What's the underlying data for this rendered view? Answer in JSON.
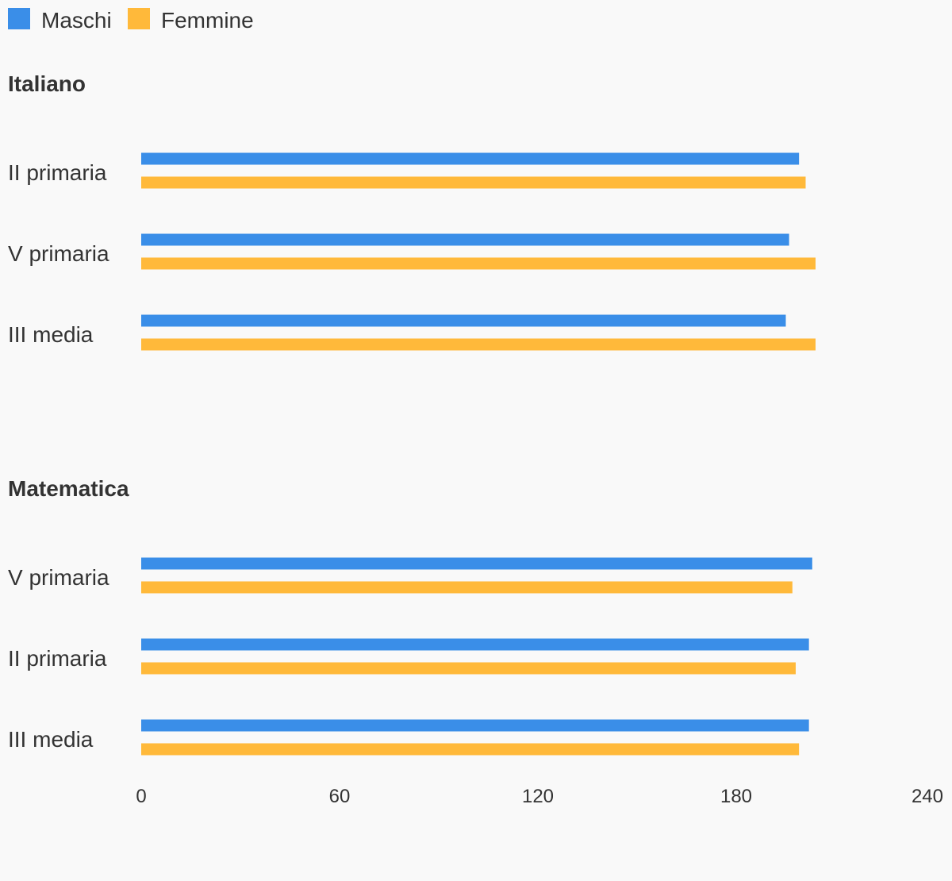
{
  "chart_data": {
    "type": "bar",
    "orientation": "horizontal",
    "legend_position": "top-left",
    "grid": false,
    "xlim": [
      0,
      240
    ],
    "xticks": [
      "0",
      "60",
      "120",
      "180",
      "240"
    ],
    "series": [
      {
        "name": "Maschi",
        "color": "#3a8ee8"
      },
      {
        "name": "Femmine",
        "color": "#ffb93a"
      }
    ],
    "groups": [
      {
        "title": "Italiano",
        "categories": [
          "II primaria",
          "V primaria",
          "III media"
        ],
        "values": {
          "Maschi": [
            199,
            196,
            195
          ],
          "Femmine": [
            201,
            204,
            204
          ]
        }
      },
      {
        "title": "Matematica",
        "categories": [
          "V primaria",
          "II primaria",
          "III media"
        ],
        "values": {
          "Maschi": [
            203,
            202,
            202
          ],
          "Femmine": [
            197,
            198,
            199
          ]
        }
      }
    ]
  }
}
